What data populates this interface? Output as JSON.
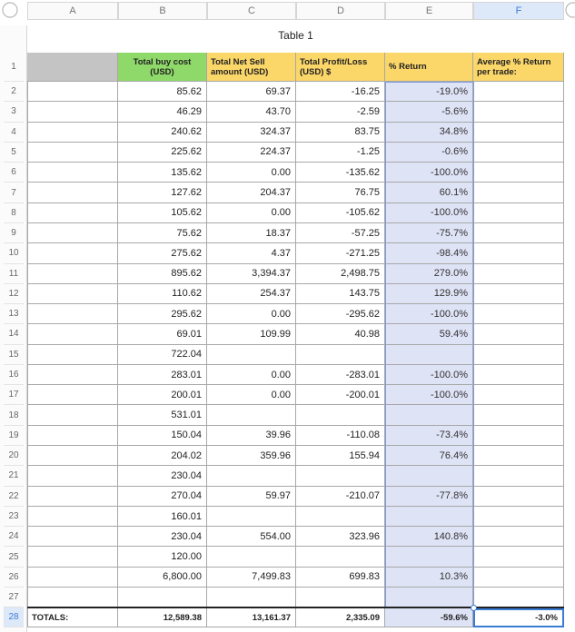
{
  "table": {
    "title": "Table 1",
    "column_letters": [
      "A",
      "B",
      "C",
      "D",
      "E",
      "F"
    ],
    "row_numbers": [
      1,
      2,
      3,
      4,
      5,
      6,
      7,
      8,
      9,
      10,
      11,
      12,
      13,
      14,
      15,
      16,
      17,
      18,
      19,
      20,
      21,
      22,
      23,
      24,
      25,
      26,
      27,
      28
    ],
    "header": [
      null,
      "Total buy cost (USD)",
      "Total Net Sell amount (USD)",
      "Total Profit/Loss (USD) $",
      "% Return",
      "Average % Return per trade:"
    ],
    "rows": [
      [
        null,
        "85.62",
        "69.37",
        "-16.25",
        "-19.0%",
        null
      ],
      [
        null,
        "46.29",
        "43.70",
        "-2.59",
        "-5.6%",
        null
      ],
      [
        null,
        "240.62",
        "324.37",
        "83.75",
        "34.8%",
        null
      ],
      [
        null,
        "225.62",
        "224.37",
        "-1.25",
        "-0.6%",
        null
      ],
      [
        null,
        "135.62",
        "0.00",
        "-135.62",
        "-100.0%",
        null
      ],
      [
        null,
        "127.62",
        "204.37",
        "76.75",
        "60.1%",
        null
      ],
      [
        null,
        "105.62",
        "0.00",
        "-105.62",
        "-100.0%",
        null
      ],
      [
        null,
        "75.62",
        "18.37",
        "-57.25",
        "-75.7%",
        null
      ],
      [
        null,
        "275.62",
        "4.37",
        "-271.25",
        "-98.4%",
        null
      ],
      [
        null,
        "895.62",
        "3,394.37",
        "2,498.75",
        "279.0%",
        null
      ],
      [
        null,
        "110.62",
        "254.37",
        "143.75",
        "129.9%",
        null
      ],
      [
        null,
        "295.62",
        "0.00",
        "-295.62",
        "-100.0%",
        null
      ],
      [
        null,
        "69.01",
        "109.99",
        "40.98",
        "59.4%",
        null
      ],
      [
        null,
        "722.04",
        null,
        null,
        null,
        null
      ],
      [
        null,
        "283.01",
        "0.00",
        "-283.01",
        "-100.0%",
        null
      ],
      [
        null,
        "200.01",
        "0.00",
        "-200.01",
        "-100.0%",
        null
      ],
      [
        null,
        "531.01",
        null,
        null,
        null,
        null
      ],
      [
        null,
        "150.04",
        "39.96",
        "-110.08",
        "-73.4%",
        null
      ],
      [
        null,
        "204.02",
        "359.96",
        "155.94",
        "76.4%",
        null
      ],
      [
        null,
        "230.04",
        null,
        null,
        null,
        null
      ],
      [
        null,
        "270.04",
        "59.97",
        "-210.07",
        "-77.8%",
        null
      ],
      [
        null,
        "160.01",
        null,
        null,
        null,
        null
      ],
      [
        null,
        "230.04",
        "554.00",
        "323.96",
        "140.8%",
        null
      ],
      [
        null,
        "120.00",
        null,
        null,
        null,
        null
      ],
      [
        null,
        "6,800.00",
        "7,499.83",
        "699.83",
        "10.3%",
        null
      ],
      [
        null,
        null,
        null,
        null,
        null,
        null
      ]
    ],
    "totals": [
      "TOTALS:",
      "12,589.38",
      "13,161.37",
      "2,335.09",
      "-59.6%",
      "-3.0%"
    ]
  }
}
